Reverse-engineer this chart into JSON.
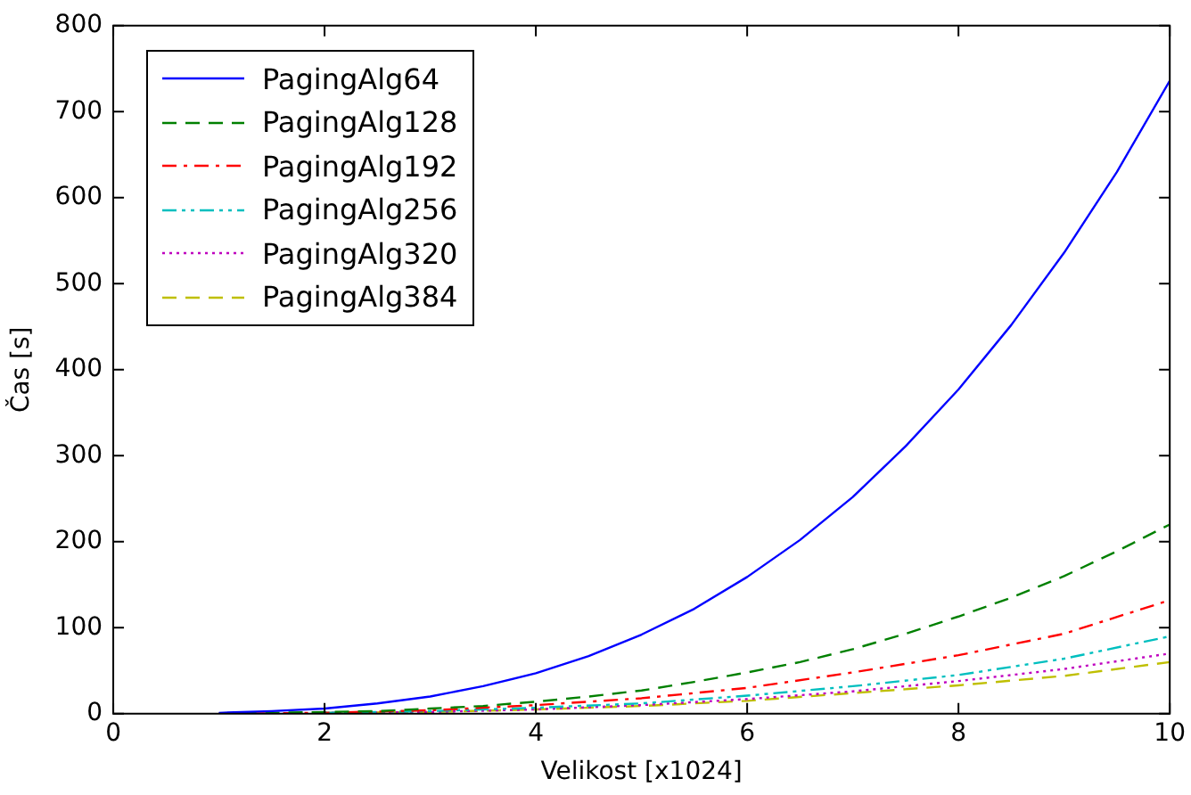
{
  "chart_data": {
    "type": "line",
    "xlabel": "Velikost [x1024]",
    "ylabel": "Čas [s]",
    "series": [
      {
        "name": "PagingAlg64",
        "color": "#0000ff",
        "line_style": "solid",
        "x": [
          1,
          1.5,
          2,
          2.5,
          3,
          3.5,
          4,
          4.5,
          5,
          5.5,
          6,
          6.5,
          7,
          7.5,
          8,
          8.5,
          9,
          9.5,
          10
        ],
        "values": [
          1,
          3,
          6,
          12,
          20,
          32,
          47,
          67,
          92,
          122,
          159,
          202,
          252,
          311,
          377,
          452,
          536,
          630,
          736
        ]
      },
      {
        "name": "PagingAlg128",
        "color": "#008000",
        "line_style": "dashed",
        "x": [
          1,
          1.5,
          2,
          2.5,
          3,
          3.5,
          4,
          4.5,
          5,
          5.5,
          6,
          6.5,
          7,
          7.5,
          8,
          8.5,
          9,
          9.5,
          10
        ],
        "values": [
          0,
          1,
          2,
          3,
          6,
          9,
          14,
          20,
          27,
          37,
          48,
          60,
          75,
          93,
          113,
          135,
          160,
          189,
          220
        ]
      },
      {
        "name": "PagingAlg192",
        "color": "#ff0000",
        "line_style": "dashdot",
        "x": [
          1,
          2,
          3,
          4,
          5,
          6,
          7,
          8,
          9,
          10
        ],
        "values": [
          0,
          1,
          4,
          10,
          18,
          30,
          48,
          68,
          93,
          132
        ]
      },
      {
        "name": "PagingAlg256",
        "color": "#00bfbf",
        "line_style": "dashdotdot",
        "x": [
          2,
          3,
          4,
          5,
          6,
          7,
          8,
          9,
          10
        ],
        "values": [
          1,
          3,
          7,
          12,
          21,
          32,
          45,
          64,
          90
        ]
      },
      {
        "name": "PagingAlg320",
        "color": "#bf00bf",
        "line_style": "dotted",
        "x": [
          2,
          3,
          4,
          5,
          6,
          7,
          8,
          9,
          10
        ],
        "values": [
          1,
          2,
          5,
          10,
          17,
          26,
          38,
          52,
          70
        ]
      },
      {
        "name": "PagingAlg384",
        "color": "#bfbf00",
        "line_style": "dashed",
        "x": [
          2,
          3,
          4,
          5,
          6,
          7,
          8,
          9,
          10
        ],
        "values": [
          1,
          2,
          5,
          9,
          15,
          24,
          33,
          44,
          60
        ]
      }
    ],
    "xlim": [
      0,
      10
    ],
    "xticks": [
      0,
      2,
      4,
      6,
      8,
      10
    ],
    "ylim": [
      0,
      800
    ],
    "yticks": [
      0,
      100,
      200,
      300,
      400,
      500,
      600,
      700,
      800
    ],
    "grid": false,
    "legend": "top left",
    "marker": "none"
  }
}
